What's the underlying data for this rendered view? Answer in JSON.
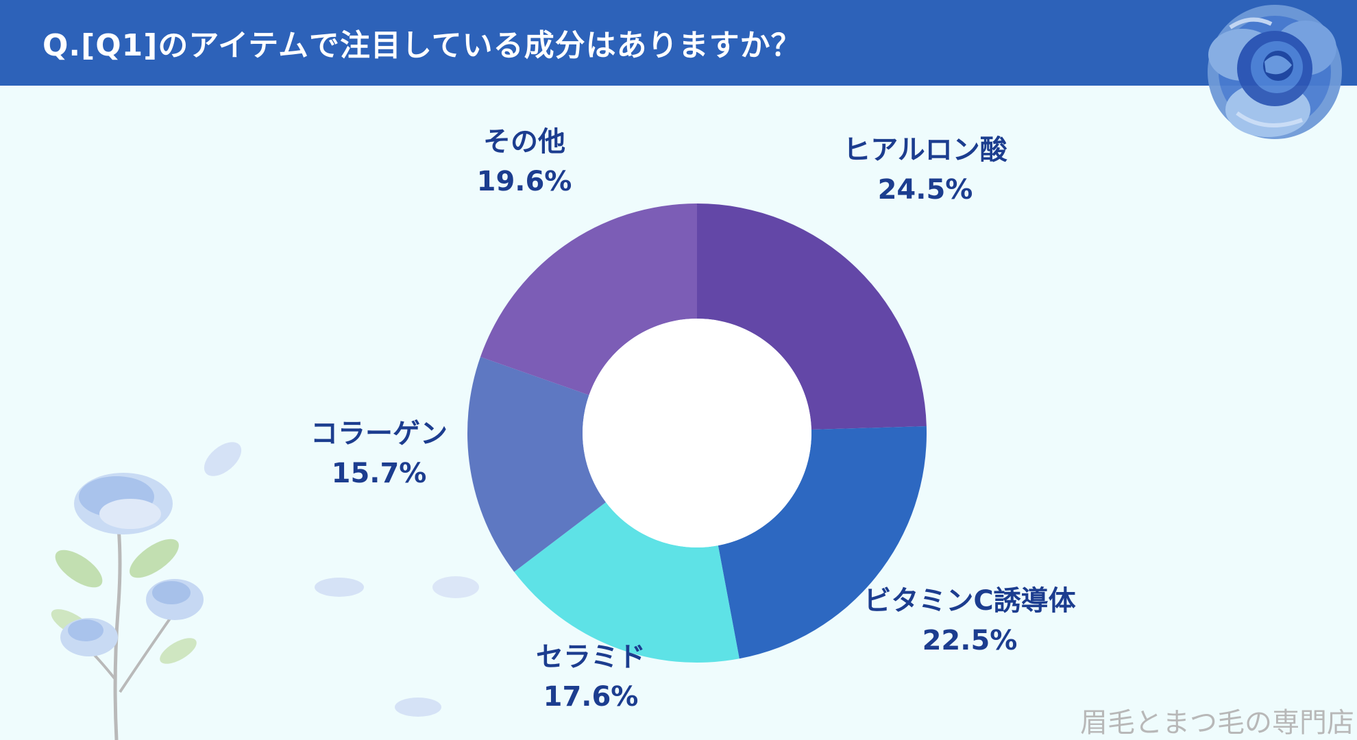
{
  "header": {
    "title": "Q.[Q1]のアイテムで注目している成分はありますか？",
    "color": "#2d62b9"
  },
  "chart_data": {
    "type": "pie",
    "style": "donut",
    "categories": [
      "ヒアルロン酸",
      "ビタミンC誘導体",
      "セラミド",
      "コラーゲン",
      "その他"
    ],
    "values": [
      24.5,
      22.5,
      17.6,
      15.7,
      19.6
    ],
    "value_labels": [
      "24.5%",
      "22.5%",
      "17.6%",
      "15.7%",
      "19.6%"
    ],
    "colors": [
      "#6347a7",
      "#2d68c1",
      "#5ee2e6",
      "#5e78c2",
      "#7c5db6"
    ],
    "title": "Q.[Q1]のアイテムで注目している成分はありますか？",
    "unit": "%"
  },
  "watermark": "眉毛とまつ毛の専門店",
  "decorations": {
    "top_right": "blue-rose-icon",
    "bottom_left": "rose-stem-icon",
    "petals": "petal-icon"
  }
}
